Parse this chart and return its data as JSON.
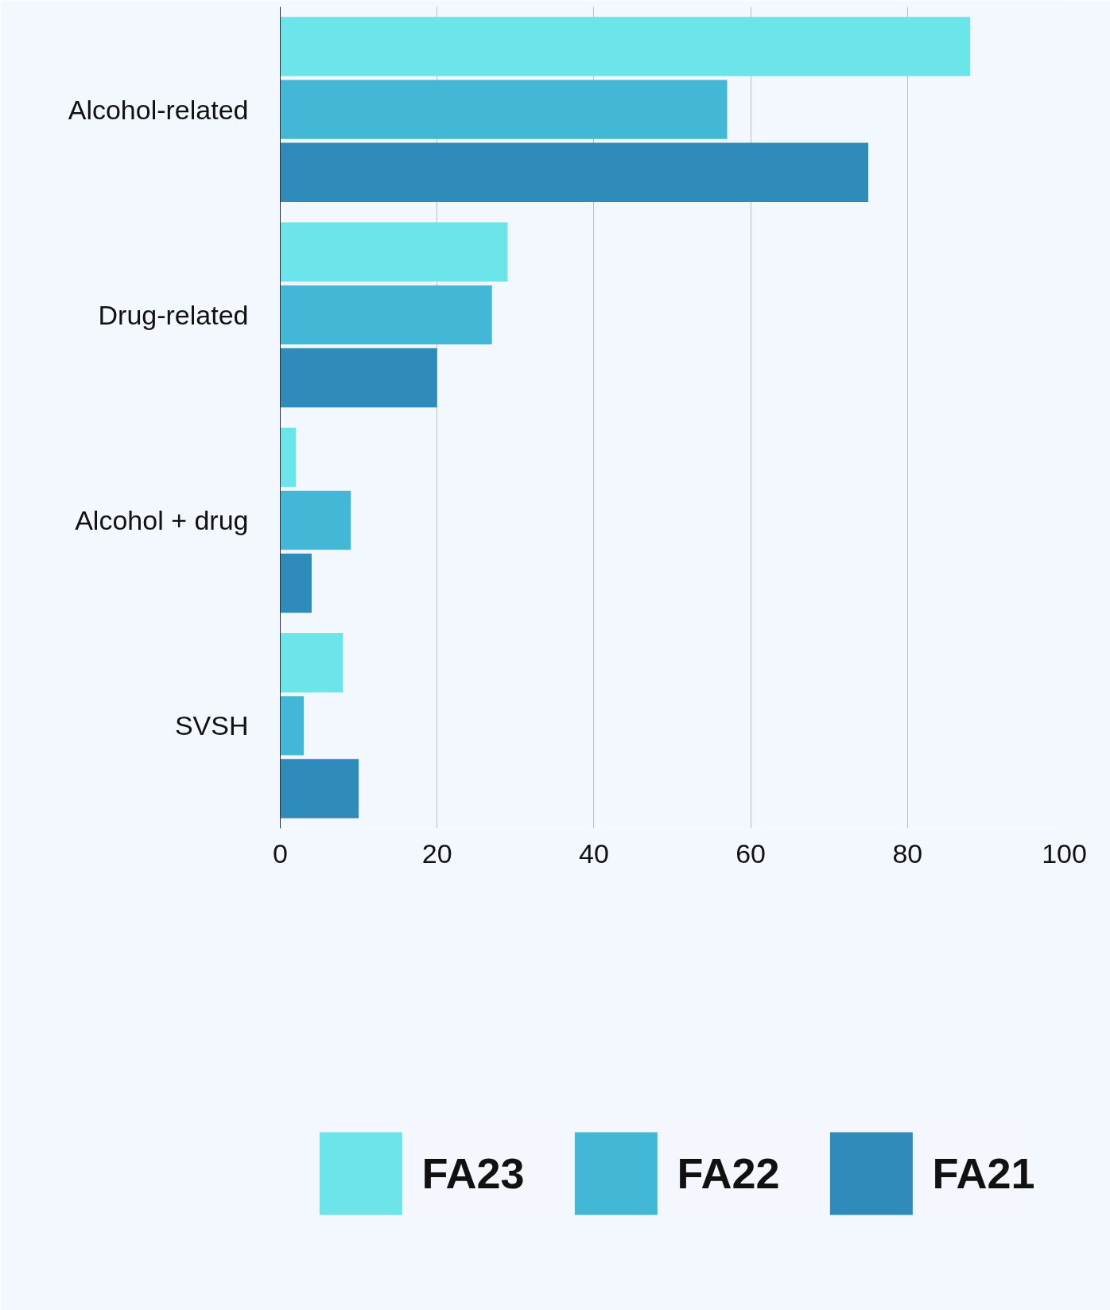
{
  "chart_data": {
    "type": "bar",
    "orientation": "horizontal",
    "categories": [
      "Alcohol-related",
      "Drug-related",
      "Alcohol + drug",
      "SVSH"
    ],
    "series": [
      {
        "name": "FA23",
        "color": "#6ce5ea",
        "values": [
          88,
          29,
          2,
          8
        ]
      },
      {
        "name": "FA22",
        "color": "#43b8d6",
        "values": [
          57,
          27,
          9,
          3
        ]
      },
      {
        "name": "FA21",
        "color": "#2e8bba",
        "values": [
          75,
          20,
          4,
          10
        ]
      }
    ],
    "xlim": [
      0,
      100
    ],
    "xticks": [
      0,
      20,
      40,
      60,
      80,
      100
    ],
    "grid": "x",
    "legend": "bottom"
  }
}
